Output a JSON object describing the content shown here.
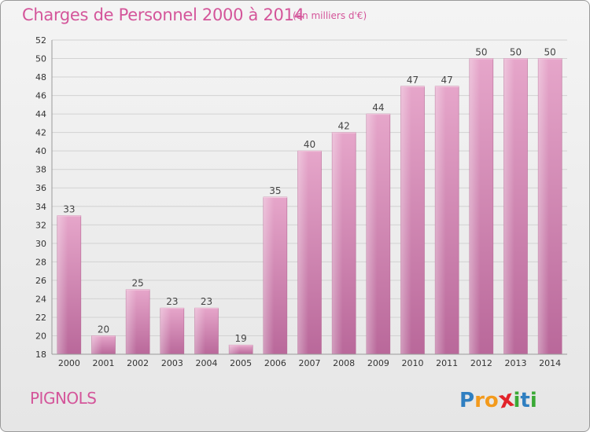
{
  "chart_data": {
    "type": "bar",
    "title": "Charges de Personnel 2000 à 2014",
    "subtitle": "(en milliers d'€)",
    "categories": [
      "2000",
      "2001",
      "2002",
      "2003",
      "2004",
      "2005",
      "2006",
      "2007",
      "2008",
      "2009",
      "2010",
      "2011",
      "2012",
      "2013",
      "2014"
    ],
    "values": [
      33,
      20,
      25,
      23,
      23,
      19,
      35,
      40,
      42,
      44,
      47,
      47,
      50,
      50,
      50
    ],
    "ylim": [
      18,
      52
    ],
    "yticks": [
      18,
      20,
      22,
      24,
      26,
      28,
      30,
      32,
      34,
      36,
      38,
      40,
      42,
      44,
      46,
      48,
      50,
      52
    ],
    "grid": true,
    "bar_color": "#c9739f"
  },
  "footer": {
    "commune": "PIGNOLS",
    "logo_letters": [
      "P",
      "r",
      "o",
      "x",
      "i",
      "t",
      "i"
    ],
    "logo_colors": [
      "#2f7fc1",
      "#f39a1c",
      "#f39a1c",
      "#e2232a",
      "#3aa935",
      "#2f7fc1",
      "#3aa935"
    ]
  }
}
